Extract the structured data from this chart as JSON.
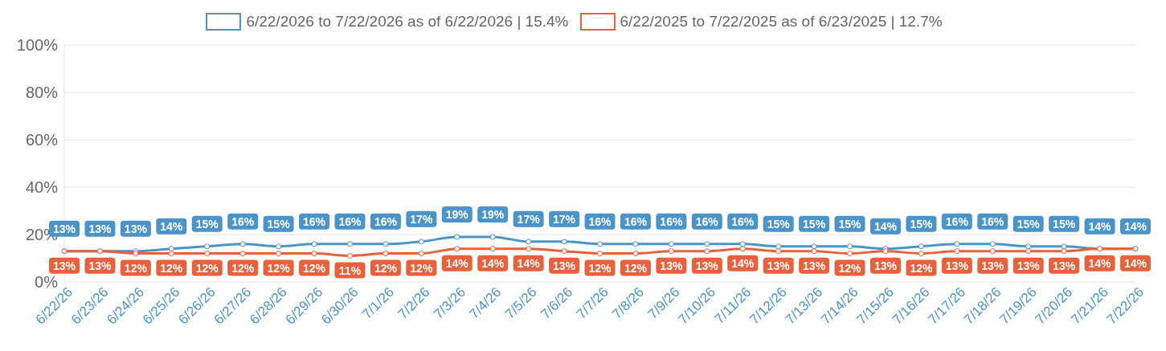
{
  "chart_data": {
    "type": "line",
    "categories": [
      "6/22/26",
      "6/23/26",
      "6/24/26",
      "6/25/26",
      "6/26/26",
      "6/27/26",
      "6/28/26",
      "6/29/26",
      "6/30/26",
      "7/1/26",
      "7/2/26",
      "7/3/26",
      "7/4/26",
      "7/5/26",
      "7/6/26",
      "7/7/26",
      "7/8/26",
      "7/9/26",
      "7/10/26",
      "7/11/26",
      "7/12/26",
      "7/13/26",
      "7/14/26",
      "7/15/26",
      "7/16/26",
      "7/17/26",
      "7/18/26",
      "7/19/26",
      "7/20/26",
      "7/21/26",
      "7/22/26"
    ],
    "series": [
      {
        "name": "6/22/2026 to 7/22/2026 as of 6/22/2026 | 15.4%",
        "color": "#4b94c9",
        "values": [
          13,
          13,
          13,
          14,
          15,
          16,
          15,
          16,
          16,
          16,
          17,
          19,
          19,
          17,
          17,
          16,
          16,
          16,
          16,
          16,
          15,
          15,
          15,
          14,
          15,
          16,
          16,
          15,
          15,
          14,
          14
        ],
        "value_labels": [
          "13%",
          "13%",
          "13%",
          "14%",
          "15%",
          "16%",
          "15%",
          "16%",
          "16%",
          "16%",
          "17%",
          "19%",
          "19%",
          "17%",
          "17%",
          "16%",
          "16%",
          "16%",
          "16%",
          "16%",
          "15%",
          "15%",
          "15%",
          "14%",
          "15%",
          "16%",
          "16%",
          "15%",
          "15%",
          "14%",
          "14%"
        ]
      },
      {
        "name": "6/22/2025 to 7/22/2025 as of 6/23/2025 | 12.7%",
        "color": "#e8603c",
        "values": [
          13,
          13,
          12,
          12,
          12,
          12,
          12,
          12,
          11,
          12,
          12,
          14,
          14,
          14,
          13,
          12,
          12,
          13,
          13,
          14,
          13,
          13,
          12,
          13,
          12,
          13,
          13,
          13,
          13,
          14,
          14
        ],
        "value_labels": [
          "13%",
          "13%",
          "12%",
          "12%",
          "12%",
          "12%",
          "12%",
          "12%",
          "11%",
          "12%",
          "12%",
          "14%",
          "14%",
          "14%",
          "13%",
          "12%",
          "12%",
          "13%",
          "13%",
          "14%",
          "13%",
          "13%",
          "12%",
          "13%",
          "12%",
          "13%",
          "13%",
          "13%",
          "13%",
          "14%",
          "14%"
        ]
      }
    ],
    "ylim": [
      0,
      100
    ],
    "yticks": [
      {
        "value": 0,
        "label": "0%"
      },
      {
        "value": 20,
        "label": "20%"
      },
      {
        "value": 40,
        "label": "40%"
      },
      {
        "value": 60,
        "label": "60%"
      },
      {
        "value": 80,
        "label": "80%"
      },
      {
        "value": 100,
        "label": "100%"
      }
    ],
    "grid": "y",
    "legend": "top",
    "marker": "circle",
    "line_style": "solid"
  }
}
